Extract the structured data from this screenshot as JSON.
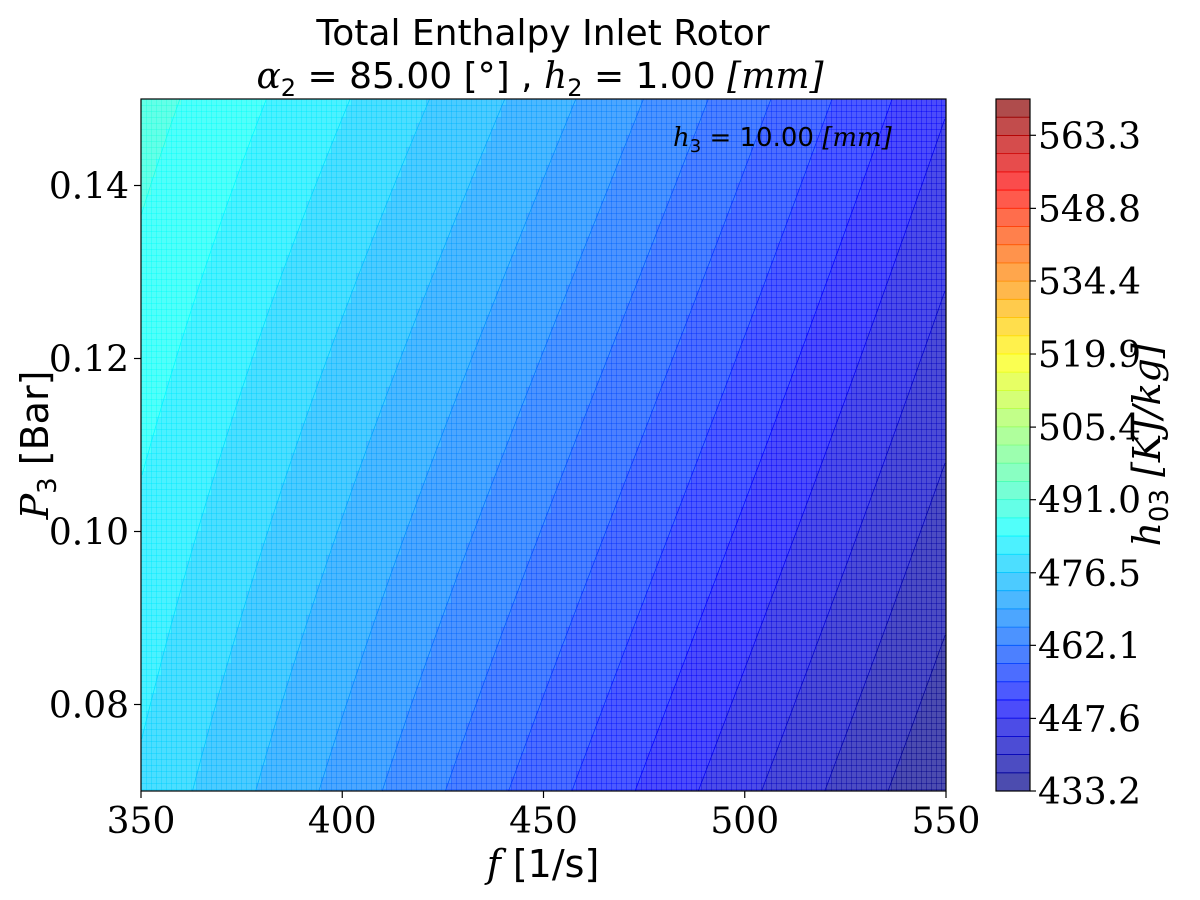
{
  "chart_data": {
    "type": "contour",
    "title": "Total Enthalpy Inlet Rotor",
    "subtitle": {
      "alpha_symbol": "α",
      "alpha_sub": "2",
      "alpha_text": " = 85.00 [°] , ",
      "h_symbol": "h",
      "h_sub": "2",
      "h_text": " = 1.00 ",
      "unit": "[mm]"
    },
    "annotation": {
      "symbol": "h",
      "sub": "3",
      "text": " = 10.00 ",
      "unit": "[mm]"
    },
    "xlabel": {
      "symbol": "f",
      "text": " [1/s]"
    },
    "ylabel": {
      "symbol": "P",
      "sub": "3",
      "text": " [Bar]"
    },
    "colorbar_label": {
      "symbol": "h",
      "sub": "03",
      "text": " [KJ/kg]"
    },
    "xlim": [
      350,
      550
    ],
    "ylim": [
      0.07,
      0.15
    ],
    "xticks": [
      "350",
      "400",
      "450",
      "500",
      "550"
    ],
    "xtick_values": [
      350,
      400,
      450,
      500,
      550
    ],
    "yticks": [
      "0.08",
      "0.10",
      "0.12",
      "0.14"
    ],
    "ytick_values": [
      0.08,
      0.1,
      0.12,
      0.14
    ],
    "colorbar_range": [
      433.2,
      570.5
    ],
    "colorbar_ticks": [
      "433.2",
      "447.6",
      "462.1",
      "476.5",
      "491.0",
      "505.4",
      "519.9",
      "534.4",
      "548.8",
      "563.3"
    ],
    "colorbar_tick_values": [
      433.2,
      447.6,
      462.1,
      476.5,
      491.0,
      505.4,
      519.9,
      534.4,
      548.8,
      563.3
    ],
    "colormap": "jet",
    "colormap_alpha": 0.7,
    "levels": 38,
    "field_corners": {
      "f350_p007": 479.5,
      "f350_p015": 489.0,
      "f550_p007": 433.5,
      "f550_p015": 448.0
    }
  }
}
